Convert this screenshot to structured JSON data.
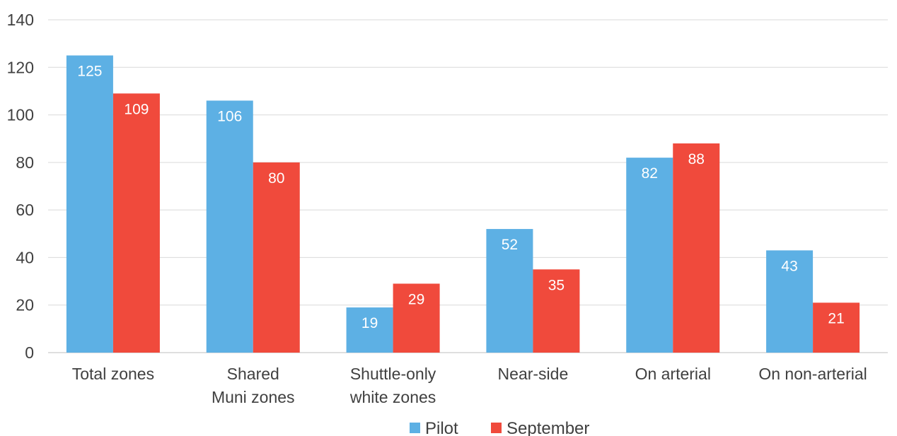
{
  "chart_data": {
    "type": "bar",
    "categories": [
      [
        "Total zones"
      ],
      [
        "Shared",
        "Muni zones"
      ],
      [
        "Shuttle-only",
        "white zones"
      ],
      [
        "Near-side"
      ],
      [
        "On arterial"
      ],
      [
        "On non-arterial"
      ]
    ],
    "series": [
      {
        "name": "Pilot",
        "color": "#5DB0E4",
        "values": [
          125,
          106,
          19,
          52,
          82,
          43
        ]
      },
      {
        "name": "September",
        "color": "#F04A3C",
        "values": [
          109,
          80,
          29,
          35,
          88,
          21
        ]
      }
    ],
    "ylim": [
      0,
      140
    ],
    "yticks": [
      0,
      20,
      40,
      60,
      80,
      100,
      120,
      140
    ],
    "grid": true,
    "legend_position": "bottom",
    "title": "",
    "xlabel": "",
    "ylabel": ""
  }
}
